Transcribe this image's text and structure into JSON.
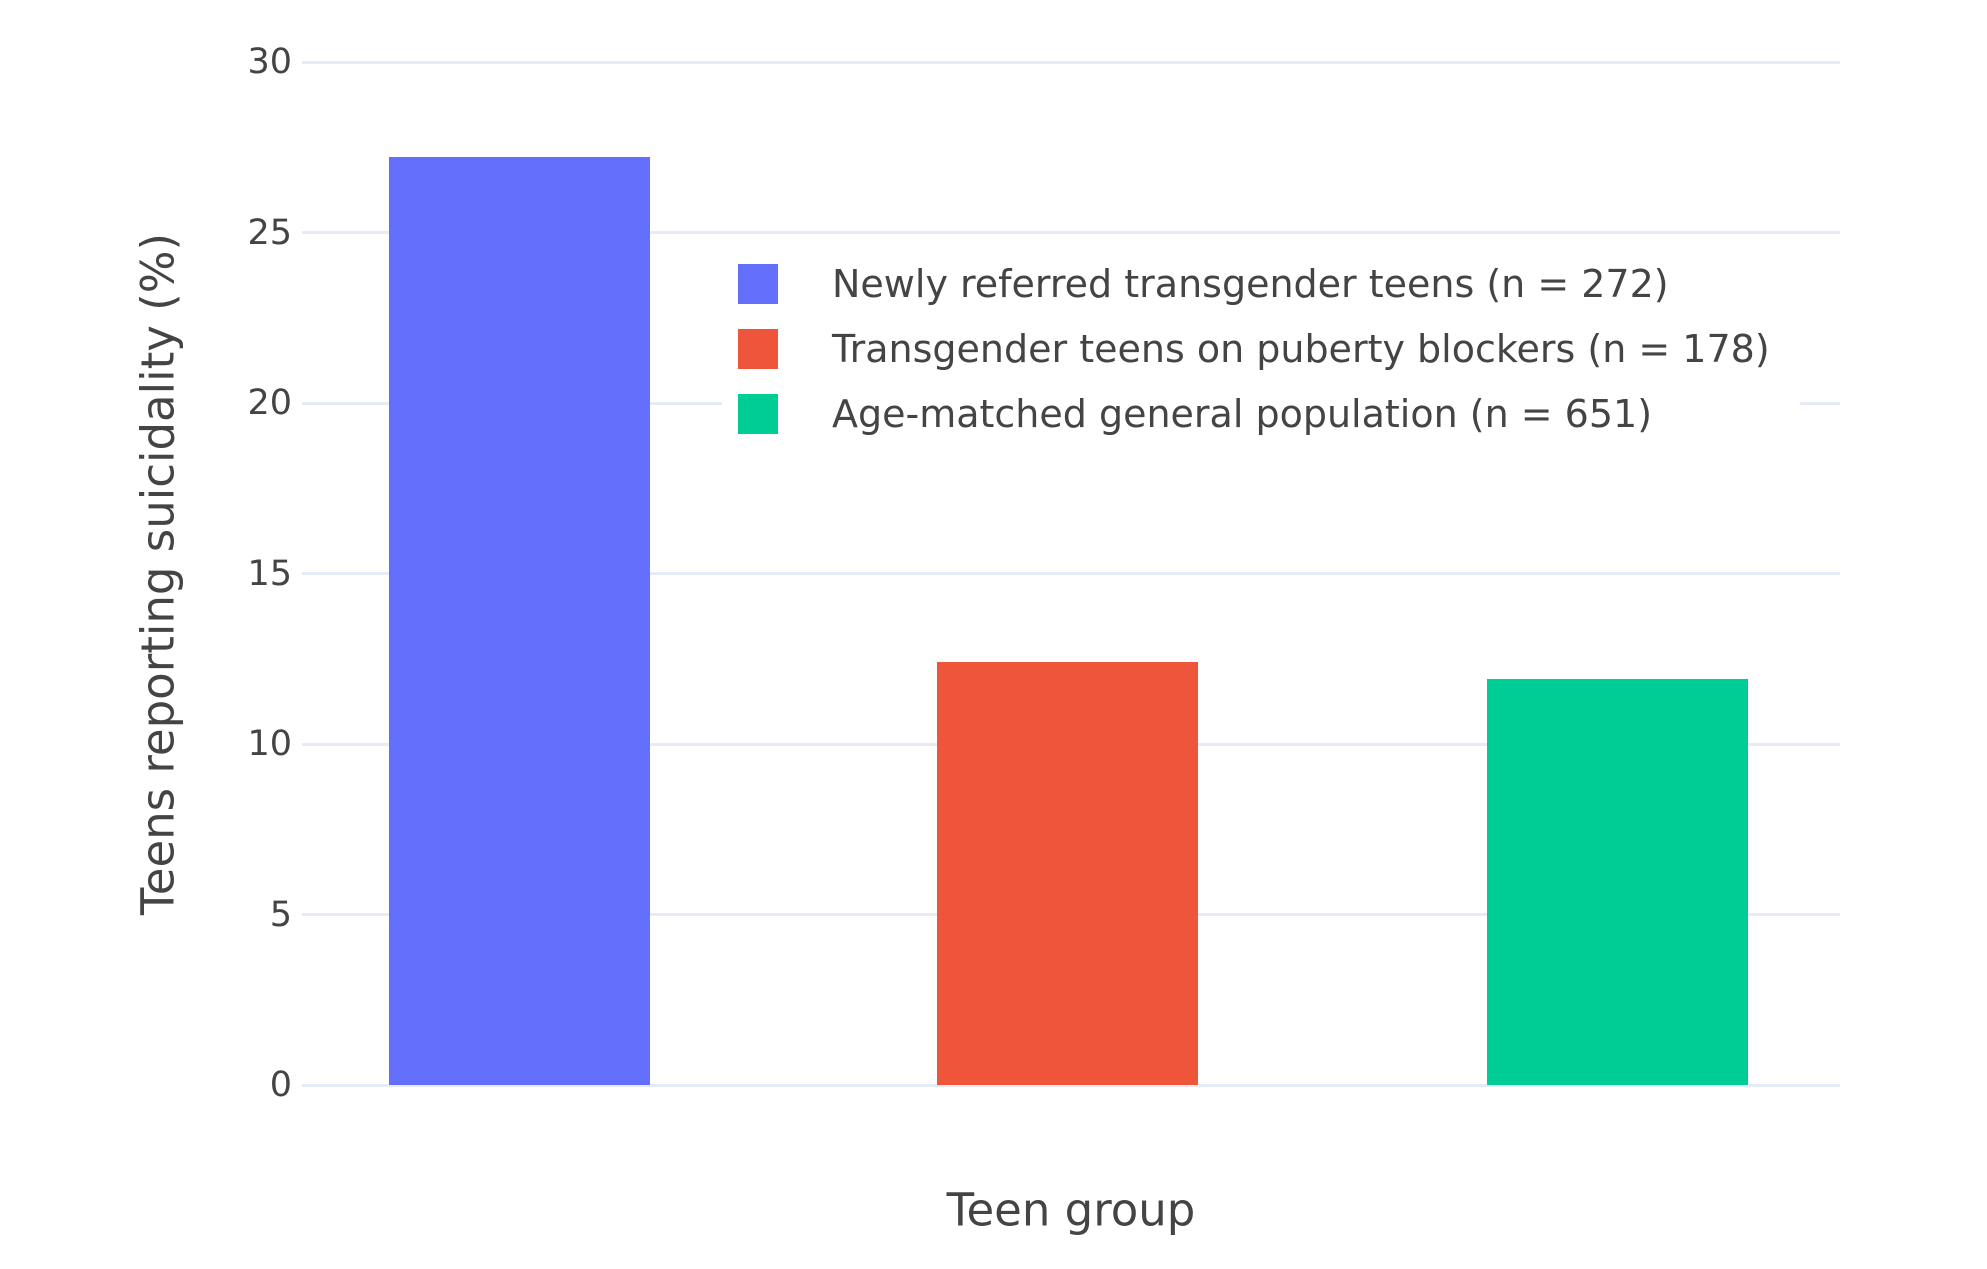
{
  "chart_data": {
    "type": "bar",
    "title": "",
    "xlabel": "Teen group",
    "ylabel": "Teens reporting suicidality (%)",
    "ylim": [
      0,
      30
    ],
    "yticks": [
      0,
      5,
      10,
      15,
      20,
      25,
      30
    ],
    "grid": true,
    "legend_position": "inside top-center",
    "series": [
      {
        "name": "Newly referred transgender teens (n = 272)",
        "value": 27.2,
        "color": "#636EFA"
      },
      {
        "name": "Transgender teens on puberty blockers (n = 178)",
        "value": 12.4,
        "color": "#EF553B"
      },
      {
        "name": "Age-matched general population (n = 651)",
        "value": 11.9,
        "color": "#00CC96"
      }
    ],
    "colors": {
      "background": "#FFFFFF",
      "gridline": "#E5ECF6",
      "text": "#444444"
    }
  }
}
